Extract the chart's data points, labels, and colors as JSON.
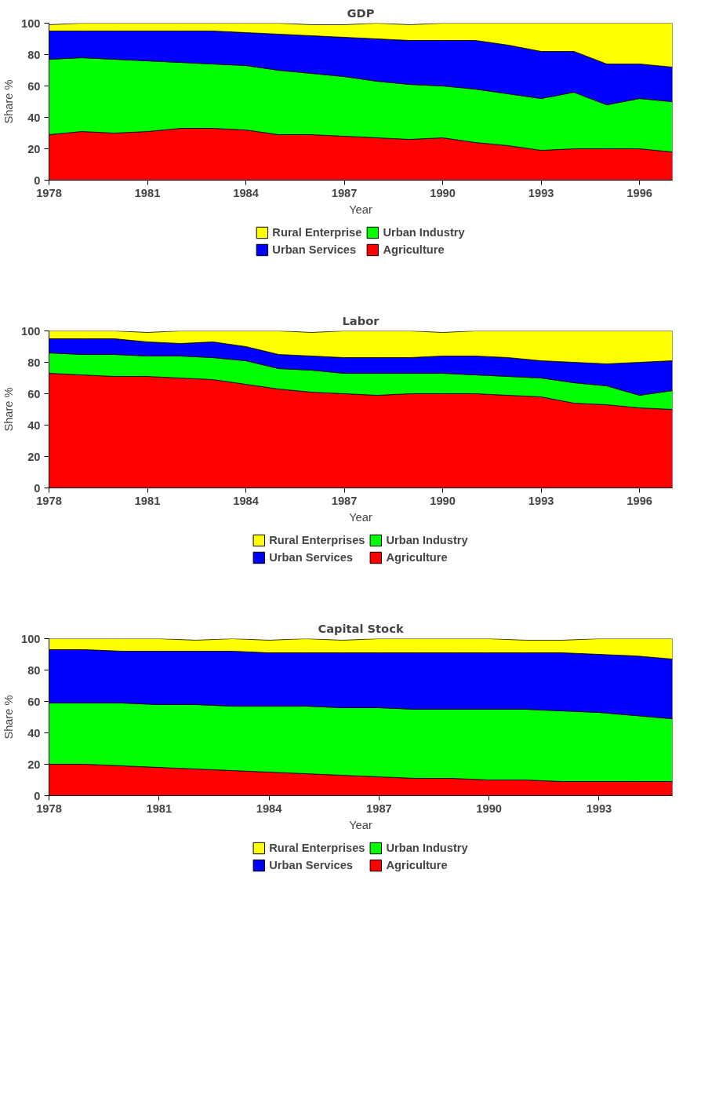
{
  "chart_data": [
    {
      "type": "area",
      "stacked": true,
      "title": "GDP",
      "xlabel": "Year",
      "ylabel": "Share %",
      "x": [
        1978,
        1979,
        1980,
        1981,
        1982,
        1983,
        1984,
        1985,
        1986,
        1987,
        1988,
        1989,
        1990,
        1991,
        1992,
        1993,
        1994,
        1995,
        1996,
        1997
      ],
      "xlim": [
        1978,
        1997
      ],
      "xticks": [
        1978,
        1981,
        1984,
        1987,
        1990,
        1993,
        1996
      ],
      "ylim": [
        0,
        100
      ],
      "yticks": [
        0,
        20,
        40,
        60,
        80,
        100
      ],
      "grid": false,
      "legend": "bottom",
      "series": [
        {
          "name": "Agriculture",
          "color": "#ff0000",
          "values": [
            29,
            31,
            30,
            31,
            33,
            33,
            32,
            29,
            29,
            28,
            27,
            26,
            27,
            24,
            22,
            19,
            20,
            20,
            20,
            18
          ]
        },
        {
          "name": "Urban Industry",
          "color": "#00ff00",
          "values": [
            48,
            47,
            47,
            45,
            42,
            41,
            41,
            41,
            39,
            38,
            36,
            35,
            33,
            34,
            33,
            33,
            36,
            28,
            32,
            32
          ]
        },
        {
          "name": "Urban Services",
          "color": "#0000ff",
          "values": [
            18,
            17,
            18,
            19,
            20,
            21,
            21,
            23,
            24,
            25,
            27,
            28,
            29,
            31,
            31,
            30,
            26,
            26,
            22,
            22
          ]
        },
        {
          "name": "Rural Enterprise",
          "color": "#ffff00",
          "values": [
            4,
            5,
            5,
            5,
            5,
            5,
            6,
            7,
            7,
            8,
            10,
            10,
            11,
            11,
            14,
            18,
            18,
            26,
            26,
            28
          ]
        }
      ]
    },
    {
      "type": "area",
      "stacked": true,
      "title": "Labor",
      "xlabel": "Year",
      "ylabel": "Share %",
      "x": [
        1978,
        1979,
        1980,
        1981,
        1982,
        1983,
        1984,
        1985,
        1986,
        1987,
        1988,
        1989,
        1990,
        1991,
        1992,
        1993,
        1994,
        1995,
        1996,
        1997
      ],
      "xlim": [
        1978,
        1997
      ],
      "xticks": [
        1978,
        1981,
        1984,
        1987,
        1990,
        1993,
        1996
      ],
      "ylim": [
        0,
        100
      ],
      "yticks": [
        0,
        20,
        40,
        60,
        80,
        100
      ],
      "grid": false,
      "legend": "bottom",
      "series": [
        {
          "name": "Agriculture",
          "color": "#ff0000",
          "values": [
            73,
            72,
            71,
            71,
            70,
            69,
            66,
            63,
            61,
            60,
            59,
            60,
            60,
            60,
            59,
            58,
            54,
            53,
            51,
            50
          ]
        },
        {
          "name": "Urban Industry",
          "color": "#00ff00",
          "values": [
            13,
            13,
            14,
            13,
            14,
            14,
            15,
            13,
            14,
            13,
            14,
            13,
            13,
            12,
            12,
            12,
            13,
            12,
            8,
            12
          ]
        },
        {
          "name": "Urban Services",
          "color": "#0000ff",
          "values": [
            9,
            10,
            10,
            9,
            8,
            10,
            9,
            9,
            9,
            10,
            10,
            10,
            11,
            12,
            12,
            11,
            13,
            14,
            21,
            19
          ]
        },
        {
          "name": "Rural Enterprises",
          "color": "#ffff00",
          "values": [
            5,
            5,
            5,
            6,
            8,
            7,
            10,
            15,
            15,
            17,
            17,
            17,
            15,
            16,
            17,
            19,
            20,
            21,
            20,
            19
          ]
        }
      ]
    },
    {
      "type": "area",
      "stacked": true,
      "title": "Capital Stock",
      "xlabel": "Year",
      "ylabel": "Share %",
      "x": [
        1978,
        1979,
        1980,
        1981,
        1982,
        1983,
        1984,
        1985,
        1986,
        1987,
        1988,
        1989,
        1990,
        1991,
        1992,
        1993,
        1994,
        1995
      ],
      "xlim": [
        1978,
        1995
      ],
      "xticks": [
        1978,
        1981,
        1984,
        1987,
        1990,
        1993
      ],
      "ylim": [
        0,
        100
      ],
      "yticks": [
        0,
        20,
        40,
        60,
        80,
        100
      ],
      "grid": false,
      "legend": "bottom",
      "series": [
        {
          "name": "Agriculture",
          "color": "#ff0000",
          "values": [
            20,
            20,
            19,
            18,
            17,
            16,
            15,
            14,
            13,
            12,
            11,
            11,
            10,
            10,
            9,
            9,
            9,
            9
          ]
        },
        {
          "name": "Urban Industry",
          "color": "#00ff00",
          "values": [
            39,
            39,
            40,
            40,
            41,
            41,
            42,
            43,
            43,
            44,
            44,
            44,
            45,
            45,
            45,
            44,
            42,
            40
          ]
        },
        {
          "name": "Urban Services",
          "color": "#0000ff",
          "values": [
            34,
            34,
            33,
            34,
            34,
            35,
            34,
            34,
            35,
            35,
            36,
            36,
            36,
            36,
            37,
            37,
            38,
            38
          ]
        },
        {
          "name": "Rural Enterprises",
          "color": "#ffff00",
          "values": [
            7,
            7,
            8,
            8,
            7,
            8,
            8,
            9,
            8,
            9,
            9,
            9,
            9,
            8,
            8,
            10,
            11,
            13
          ]
        }
      ]
    }
  ]
}
